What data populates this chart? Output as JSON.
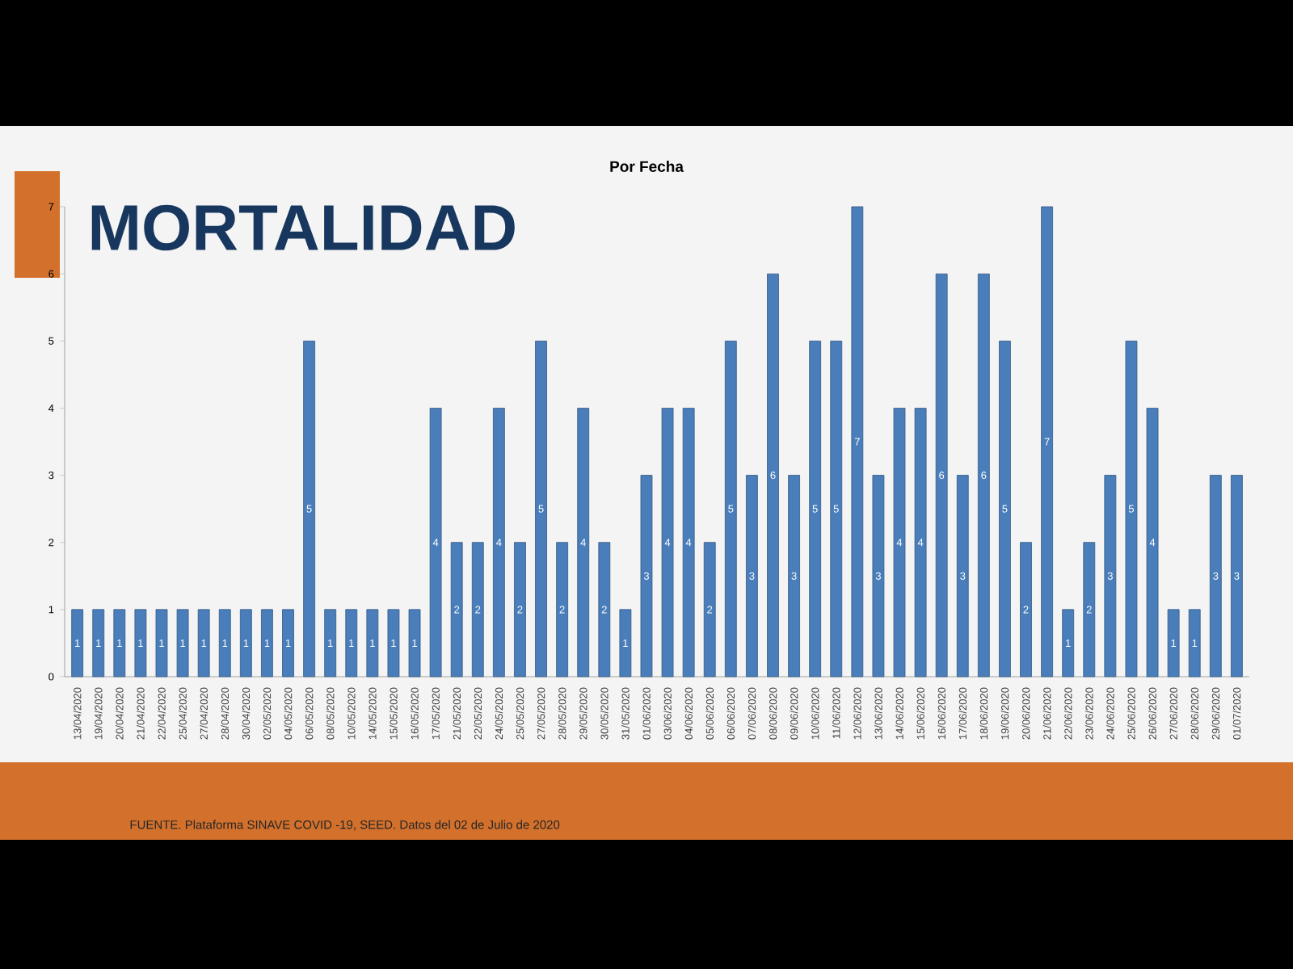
{
  "chart_data": {
    "type": "bar",
    "title": "MORTALIDAD",
    "subtitle": "Por Fecha",
    "categories": [
      "13/04/2020",
      "19/04/2020",
      "20/04/2020",
      "21/04/2020",
      "22/04/2020",
      "25/04/2020",
      "27/04/2020",
      "28/04/2020",
      "30/04/2020",
      "02/05/2020",
      "04/05/2020",
      "06/05/2020",
      "08/05/2020",
      "10/05/2020",
      "14/05/2020",
      "15/05/2020",
      "16/05/2020",
      "17/05/2020",
      "21/05/2020",
      "22/05/2020",
      "24/05/2020",
      "25/05/2020",
      "27/05/2020",
      "28/05/2020",
      "29/05/2020",
      "30/05/2020",
      "31/05/2020",
      "01/06/2020",
      "03/06/2020",
      "04/06/2020",
      "05/06/2020",
      "06/06/2020",
      "07/06/2020",
      "08/06/2020",
      "09/06/2020",
      "10/06/2020",
      "11/06/2020",
      "12/06/2020",
      "13/06/2020",
      "14/06/2020",
      "15/06/2020",
      "16/06/2020",
      "17/06/2020",
      "18/06/2020",
      "19/06/2020",
      "20/06/2020",
      "21/06/2020",
      "22/06/2020",
      "23/06/2020",
      "24/06/2020",
      "25/06/2020",
      "26/06/2020",
      "27/06/2020",
      "28/06/2020",
      "29/06/2020",
      "01/07/2020"
    ],
    "values": [
      1,
      1,
      1,
      1,
      1,
      1,
      1,
      1,
      1,
      1,
      1,
      5,
      1,
      1,
      1,
      1,
      1,
      4,
      2,
      2,
      4,
      2,
      5,
      2,
      4,
      2,
      1,
      3,
      4,
      4,
      2,
      5,
      3,
      6,
      3,
      5,
      5,
      7,
      3,
      4,
      4,
      6,
      3,
      6,
      5,
      2,
      7,
      1,
      2,
      3,
      5,
      4,
      1,
      1,
      3,
      3
    ],
    "color": "#4a7ebb",
    "ylim": [
      0,
      7
    ],
    "yticks": [
      0,
      1,
      2,
      3,
      4,
      5,
      6,
      7
    ],
    "data_labels": true,
    "annotations": [
      "FUENTE. Plataforma SINAVE COVID -19, SEED. Datos del 02 de Julio de 2020"
    ]
  }
}
